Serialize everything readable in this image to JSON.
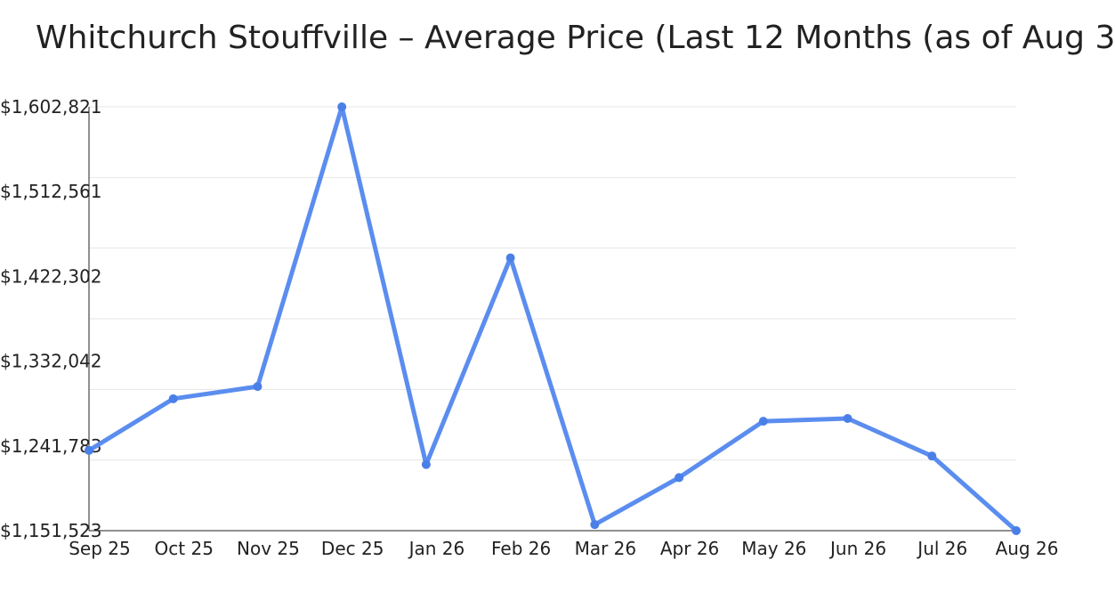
{
  "chart_data": {
    "type": "line",
    "title": "Whitchurch Stouffville – Average Price (Last 12 Months (as of Aug 3",
    "xlabel": "",
    "ylabel": "",
    "categories": [
      "Sep 25",
      "Oct 25",
      "Nov 25",
      "Dec 25",
      "Jan 26",
      "Feb 26",
      "Mar 26",
      "Apr 26",
      "May 26",
      "Jun 26",
      "Jul 26",
      "Aug 26"
    ],
    "series": [
      {
        "values": [
          1237000,
          1292000,
          1305000,
          1602821,
          1222000,
          1442000,
          1158000,
          1208000,
          1268000,
          1271000,
          1231000,
          1151523
        ]
      }
    ],
    "ylim": [
      1151523,
      1602821
    ],
    "yticks": [
      "$1,151,523",
      "$1,241,783",
      "$1,332,042",
      "$1,422,302",
      "$1,512,561",
      "$1,602,821"
    ],
    "ytick_values": [
      1151523,
      1241783,
      1332042,
      1422302,
      1512561,
      1602821
    ],
    "grid": true,
    "legend": "none",
    "colors": {
      "line": "#5b8def",
      "marker": "#4a7fe8",
      "grid": "#e6e6e6",
      "axis": "#222222",
      "text": "#222222"
    }
  }
}
